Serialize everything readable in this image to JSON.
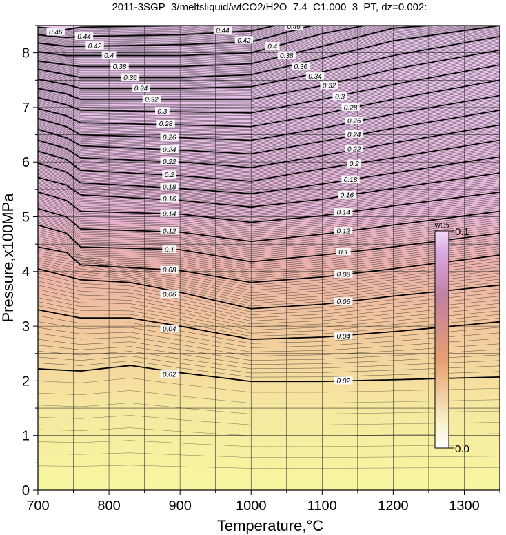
{
  "chart_data": {
    "type": "contour",
    "title": "2011-3SGP_3/meltsliquid/wtCO2/H2O_7.4_C1.000_3_PT, dz=0.002:",
    "xlabel": "Temperature,°C",
    "ylabel": "Pressure,x100MPa",
    "xlim": [
      700,
      1350
    ],
    "ylim": [
      0,
      8.5
    ],
    "x_ticks": [
      700,
      800,
      900,
      1000,
      1100,
      1200,
      1300
    ],
    "y_ticks": [
      0,
      1,
      2,
      3,
      4,
      5,
      6,
      7,
      8
    ],
    "grid": true,
    "contour_interval": 0.002,
    "labeled_interval": 0.02,
    "colorbar": {
      "unit": "wt%",
      "min_label": "0.0",
      "max_label": "0.1",
      "min": 0.0,
      "max": 0.1,
      "colors": [
        "#f7f7a0",
        "#f7b890",
        "#e8a0c8",
        "#f4c8f4"
      ]
    },
    "contours": [
      {
        "level": 0.02,
        "label": "0.02",
        "x": [
          700,
          760,
          830,
          900,
          1000,
          1100,
          1200,
          1350
        ],
        "y": [
          2.22,
          2.18,
          2.28,
          2.15,
          1.99,
          1.99,
          2.02,
          2.07
        ]
      },
      {
        "level": 0.04,
        "label": "0.04",
        "x": [
          700,
          760,
          830,
          900,
          1000,
          1100,
          1200,
          1350
        ],
        "y": [
          3.3,
          3.15,
          3.15,
          3.0,
          2.76,
          2.8,
          2.9,
          3.08
        ]
      },
      {
        "level": 0.06,
        "label": "0.06",
        "x": [
          700,
          760,
          830,
          900,
          1000,
          1100,
          1200,
          1350
        ],
        "y": [
          4.05,
          3.85,
          3.8,
          3.62,
          3.32,
          3.4,
          3.55,
          3.75
        ]
      },
      {
        "level": 0.08,
        "label": "0.08",
        "x": [
          700,
          740,
          760,
          900,
          1000,
          1100,
          1200,
          1350
        ],
        "y": [
          4.45,
          4.35,
          4.12,
          4.02,
          3.8,
          3.9,
          4.05,
          4.3
        ]
      },
      {
        "level": 0.1,
        "label": "0.1",
        "x": [
          700,
          740,
          760,
          900,
          1000,
          1100,
          1200,
          1350
        ],
        "y": [
          4.85,
          4.7,
          4.45,
          4.4,
          4.18,
          4.3,
          4.45,
          4.7
        ]
      },
      {
        "level": 0.12,
        "label": "0.12",
        "x": [
          700,
          740,
          760,
          900,
          1000,
          1100,
          1200,
          1350
        ],
        "y": [
          5.15,
          5.0,
          4.78,
          4.72,
          4.55,
          4.68,
          4.85,
          5.1
        ]
      },
      {
        "level": 0.14,
        "label": "0.14",
        "x": [
          700,
          740,
          760,
          900,
          1000,
          1100,
          1200,
          1350
        ],
        "y": [
          5.45,
          5.3,
          5.1,
          5.05,
          4.9,
          5.02,
          5.2,
          5.45
        ]
      },
      {
        "level": 0.16,
        "label": "0.16",
        "x": [
          700,
          740,
          760,
          900,
          1000,
          1100,
          1200,
          1350
        ],
        "y": [
          5.72,
          5.58,
          5.4,
          5.3,
          5.18,
          5.32,
          5.52,
          5.8
        ]
      },
      {
        "level": 0.18,
        "label": "0.18",
        "x": [
          700,
          740,
          760,
          900,
          1000,
          1100,
          1200,
          1350
        ],
        "y": [
          5.98,
          5.82,
          5.62,
          5.52,
          5.42,
          5.6,
          5.8,
          6.1
        ]
      },
      {
        "level": 0.2,
        "label": "0.2",
        "x": [
          700,
          740,
          760,
          900,
          1000,
          1100,
          1200,
          1350
        ],
        "y": [
          6.2,
          6.05,
          5.85,
          5.75,
          5.65,
          5.88,
          6.08,
          6.4
        ]
      },
      {
        "level": 0.22,
        "label": "0.22",
        "x": [
          700,
          740,
          760,
          900,
          1000,
          1100,
          1200,
          1350
        ],
        "y": [
          6.4,
          6.25,
          6.08,
          6.0,
          5.9,
          6.12,
          6.35,
          6.68
        ]
      },
      {
        "level": 0.24,
        "label": "0.24",
        "x": [
          700,
          740,
          760,
          900,
          1000,
          1100,
          1200,
          1350
        ],
        "y": [
          6.6,
          6.45,
          6.3,
          6.22,
          6.15,
          6.38,
          6.62,
          6.95
        ]
      },
      {
        "level": 0.26,
        "label": "0.26",
        "x": [
          700,
          740,
          760,
          900,
          1000,
          1100,
          1200,
          1350
        ],
        "y": [
          6.8,
          6.65,
          6.5,
          6.45,
          6.4,
          6.62,
          6.88,
          7.22
        ]
      },
      {
        "level": 0.28,
        "label": "0.28",
        "x": [
          700,
          740,
          760,
          900,
          1000,
          1100,
          1200,
          1350
        ],
        "y": [
          6.98,
          6.85,
          6.72,
          6.68,
          6.65,
          6.88,
          7.15,
          7.5
        ]
      },
      {
        "level": 0.3,
        "label": "0.3",
        "x": [
          700,
          740,
          760,
          900,
          1000,
          1100,
          1200,
          1350
        ],
        "y": [
          7.18,
          7.05,
          6.95,
          6.92,
          6.9,
          7.15,
          7.42,
          7.78
        ]
      },
      {
        "level": 0.32,
        "label": "0.32",
        "x": [
          700,
          740,
          760,
          900,
          1000,
          1100,
          1200,
          1350
        ],
        "y": [
          7.35,
          7.25,
          7.15,
          7.15,
          7.15,
          7.4,
          7.7,
          8.05
        ]
      },
      {
        "level": 0.34,
        "label": "0.34",
        "x": [
          700,
          740,
          760,
          900,
          1000,
          1100,
          1200,
          1350
        ],
        "y": [
          7.52,
          7.42,
          7.35,
          7.35,
          7.38,
          7.65,
          7.95,
          8.3
        ]
      },
      {
        "level": 0.36,
        "label": "0.36",
        "x": [
          700,
          740,
          760,
          900,
          1000,
          1100,
          1200,
          1350
        ],
        "y": [
          7.7,
          7.6,
          7.55,
          7.55,
          7.6,
          7.9,
          8.22,
          8.5
        ]
      },
      {
        "level": 0.38,
        "label": "0.38",
        "x": [
          700,
          740,
          760,
          900,
          1000,
          1100,
          1200,
          1350
        ],
        "y": [
          7.85,
          7.78,
          7.75,
          7.75,
          7.8,
          8.12,
          8.45,
          8.6
        ]
      },
      {
        "level": 0.4,
        "label": "0.4",
        "x": [
          700,
          740,
          760,
          900,
          1000,
          1100,
          1200,
          1350
        ],
        "y": [
          8.02,
          7.95,
          7.95,
          7.95,
          8.0,
          8.35,
          8.6,
          8.7
        ]
      },
      {
        "level": 0.42,
        "label": "0.42",
        "x": [
          700,
          740,
          760,
          900,
          1000,
          1100,
          1200,
          1350
        ],
        "y": [
          8.18,
          8.12,
          8.12,
          8.15,
          8.2,
          8.55,
          8.7,
          8.8
        ]
      },
      {
        "level": 0.44,
        "label": "0.44",
        "x": [
          700,
          740,
          760,
          900,
          1000,
          1100,
          1200,
          1350
        ],
        "y": [
          8.33,
          8.28,
          8.3,
          8.33,
          8.4,
          8.7,
          8.8,
          8.9
        ]
      },
      {
        "level": 0.46,
        "label": "0.46",
        "x": [
          700,
          740,
          760,
          900,
          1000,
          1100,
          1200,
          1350
        ],
        "y": [
          8.47,
          8.43,
          8.47,
          8.5,
          8.58,
          8.85,
          8.9,
          9.0
        ]
      }
    ],
    "contour_label_positions": [
      {
        "label": "0.02",
        "x": 885,
        "y": 2.12
      },
      {
        "label": "0.02",
        "x": 1130,
        "y": 2.0
      },
      {
        "label": "0.04",
        "x": 885,
        "y": 2.95
      },
      {
        "label": "0.04",
        "x": 1130,
        "y": 2.82
      },
      {
        "label": "0.06",
        "x": 885,
        "y": 3.58
      },
      {
        "label": "0.06",
        "x": 1130,
        "y": 3.45
      },
      {
        "label": "0.08",
        "x": 885,
        "y": 4.03
      },
      {
        "label": "0.08",
        "x": 1130,
        "y": 3.95
      },
      {
        "label": "0.1",
        "x": 885,
        "y": 4.4
      },
      {
        "label": "0.1",
        "x": 1130,
        "y": 4.36
      },
      {
        "label": "0.12",
        "x": 885,
        "y": 4.74
      },
      {
        "label": "0.12",
        "x": 1130,
        "y": 4.74
      },
      {
        "label": "0.14",
        "x": 885,
        "y": 5.06
      },
      {
        "label": "0.14",
        "x": 1130,
        "y": 5.08
      },
      {
        "label": "0.16",
        "x": 885,
        "y": 5.33
      },
      {
        "label": "0.16",
        "x": 1135,
        "y": 5.4
      },
      {
        "label": "0.18",
        "x": 885,
        "y": 5.55
      },
      {
        "label": "0.18",
        "x": 1140,
        "y": 5.68
      },
      {
        "label": "0.2",
        "x": 885,
        "y": 5.77
      },
      {
        "label": "0.2",
        "x": 1145,
        "y": 5.97
      },
      {
        "label": "0.22",
        "x": 885,
        "y": 6.01
      },
      {
        "label": "0.22",
        "x": 1145,
        "y": 6.24
      },
      {
        "label": "0.24",
        "x": 885,
        "y": 6.23
      },
      {
        "label": "0.24",
        "x": 1145,
        "y": 6.51
      },
      {
        "label": "0.26",
        "x": 885,
        "y": 6.46
      },
      {
        "label": "0.26",
        "x": 1145,
        "y": 6.76
      },
      {
        "label": "0.28",
        "x": 880,
        "y": 6.7
      },
      {
        "label": "0.28",
        "x": 1140,
        "y": 7.0
      },
      {
        "label": "0.3",
        "x": 875,
        "y": 6.93
      },
      {
        "label": "0.3",
        "x": 1125,
        "y": 7.2
      },
      {
        "label": "0.32",
        "x": 860,
        "y": 7.15
      },
      {
        "label": "0.32",
        "x": 1110,
        "y": 7.4
      },
      {
        "label": "0.34",
        "x": 845,
        "y": 7.35
      },
      {
        "label": "0.34",
        "x": 1090,
        "y": 7.57
      },
      {
        "label": "0.36",
        "x": 830,
        "y": 7.55
      },
      {
        "label": "0.36",
        "x": 1070,
        "y": 7.75
      },
      {
        "label": "0.38",
        "x": 815,
        "y": 7.75
      },
      {
        "label": "0.38",
        "x": 1050,
        "y": 7.95
      },
      {
        "label": "0.4",
        "x": 800,
        "y": 7.95
      },
      {
        "label": "0.4",
        "x": 1030,
        "y": 8.12
      },
      {
        "label": "0.42",
        "x": 780,
        "y": 8.13
      },
      {
        "label": "0.42",
        "x": 990,
        "y": 8.23
      },
      {
        "label": "0.44",
        "x": 765,
        "y": 8.3
      },
      {
        "label": "0.44",
        "x": 960,
        "y": 8.41
      },
      {
        "label": "0.46",
        "x": 725,
        "y": 8.38
      },
      {
        "label": "0.46",
        "x": 1060,
        "y": 8.48
      }
    ]
  }
}
